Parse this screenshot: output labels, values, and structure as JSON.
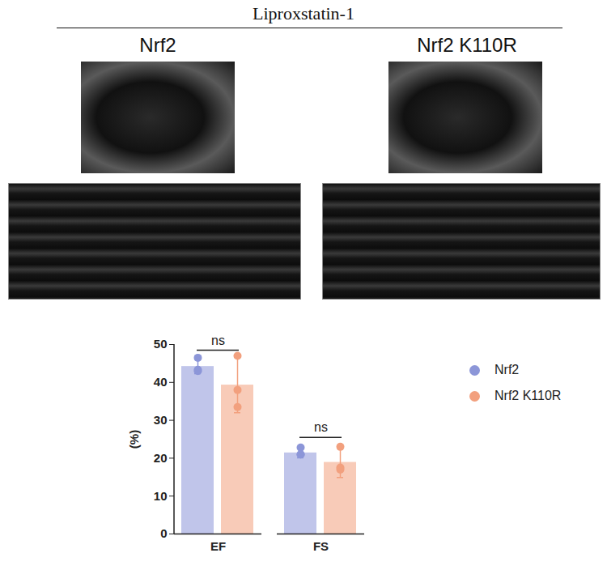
{
  "title": "Liproxstatin-1",
  "panels": [
    {
      "title": "Nrf2"
    },
    {
      "title": "Nrf2 K110R"
    }
  ],
  "chart_data": {
    "type": "bar",
    "categories": [
      "EF",
      "FS"
    ],
    "ylabel": "(%)",
    "ylim": [
      0,
      50
    ],
    "yticks": [
      0,
      10,
      20,
      30,
      40,
      50
    ],
    "legend": "right",
    "series": [
      {
        "name": "Nrf2",
        "color": "#8c96d8",
        "values": [
          44.2,
          21.4
        ],
        "errors": [
          1.9,
          1.3
        ],
        "points": [
          [
            46.5,
            43.0,
            43.3
          ],
          [
            22.8,
            21.0,
            21.0
          ]
        ]
      },
      {
        "name": "Nrf2 K110R",
        "color": "#f2a07e",
        "values": [
          39.3,
          18.9
        ],
        "errors": [
          7.3,
          4.0
        ],
        "points": [
          [
            47.0,
            38.0,
            33.5
          ],
          [
            23.0,
            17.5,
            17.0
          ]
        ]
      }
    ],
    "annotations": [
      {
        "text": "ns",
        "category": "EF",
        "y": 48.5
      },
      {
        "text": "ns",
        "category": "FS",
        "y": 25.5
      }
    ]
  }
}
